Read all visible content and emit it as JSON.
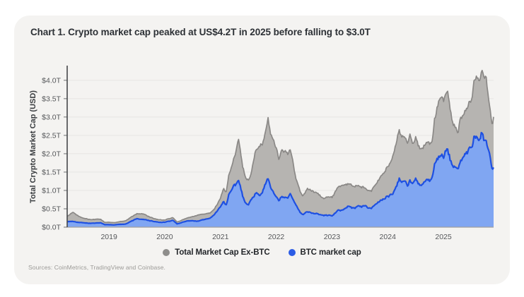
{
  "page": {
    "background": "#ffffff"
  },
  "card": {
    "background": "#f4f3f1",
    "title": "Chart 1. Crypto market cap peaked at US$4.2T in 2025 before falling to $3.0T"
  },
  "chart": {
    "y_axis_title": "Total Crypto Market Cap (USD)",
    "y_tick_labels": [
      "$0.0T",
      "$0.5T",
      "$1.0T",
      "$1.5T",
      "$2.0T",
      "$2.5T",
      "$3.0T",
      "$3.5T",
      "$4.0T"
    ],
    "x_tick_labels": [
      "2019",
      "2020",
      "2021",
      "2022",
      "2023",
      "2024",
      "2025"
    ],
    "colors": {
      "gridline": "#e6e5e3",
      "y_axis_line": "#46484a",
      "x_axis_line": "#a0a09e",
      "tick_mark": "#6f7173",
      "tick_text": "#55575a",
      "axis_title_text": "#3a3d40"
    }
  },
  "chart_data": {
    "type": "area",
    "stacked": true,
    "title": "Chart 1. Crypto market cap peaked at US$4.2T in 2025 before falling to $3.0T",
    "xlabel": "",
    "ylabel": "Total Crypto Market Cap (USD)",
    "value_units": "USD trillions",
    "x_units": "decimal_year",
    "xlim": [
      2018.25,
      2025.9
    ],
    "ylim": [
      0,
      4.4
    ],
    "grid": "horizontal",
    "legend_position": "bottom",
    "x": [
      2018.25,
      2018.35,
      2018.5,
      2018.65,
      2018.85,
      2018.92,
      2019.0,
      2019.1,
      2019.3,
      2019.5,
      2019.6,
      2019.75,
      2019.9,
      2020.0,
      2020.15,
      2020.22,
      2020.4,
      2020.6,
      2020.7,
      2020.8,
      2020.9,
      2021.0,
      2021.05,
      2021.1,
      2021.15,
      2021.25,
      2021.33,
      2021.4,
      2021.45,
      2021.5,
      2021.55,
      2021.6,
      2021.65,
      2021.7,
      2021.8,
      2021.85,
      2021.9,
      2021.95,
      2022.0,
      2022.05,
      2022.1,
      2022.2,
      2022.25,
      2022.3,
      2022.35,
      2022.45,
      2022.5,
      2022.55,
      2022.6,
      2022.7,
      2022.85,
      2022.9,
      2023.0,
      2023.1,
      2023.2,
      2023.3,
      2023.4,
      2023.5,
      2023.6,
      2023.7,
      2023.8,
      2023.9,
      2024.0,
      2024.1,
      2024.2,
      2024.25,
      2024.3,
      2024.35,
      2024.4,
      2024.45,
      2024.5,
      2024.55,
      2024.6,
      2024.65,
      2024.7,
      2024.75,
      2024.8,
      2024.85,
      2024.9,
      2024.95,
      2025.0,
      2025.05,
      2025.1,
      2025.15,
      2025.2,
      2025.25,
      2025.3,
      2025.35,
      2025.4,
      2025.45,
      2025.5,
      2025.55,
      2025.6,
      2025.64,
      2025.68,
      2025.7,
      2025.73,
      2025.76,
      2025.8,
      2025.84,
      2025.87,
      2025.9
    ],
    "series": [
      {
        "name": "BTC market cap",
        "color_fill": "#80a6f2",
        "color_stroke": "#1e50e2",
        "values": [
          0.15,
          0.16,
          0.13,
          0.11,
          0.11,
          0.07,
          0.065,
          0.063,
          0.09,
          0.23,
          0.21,
          0.17,
          0.13,
          0.13,
          0.18,
          0.09,
          0.17,
          0.17,
          0.2,
          0.24,
          0.35,
          0.54,
          0.7,
          0.6,
          0.9,
          1.1,
          1.18,
          0.85,
          0.7,
          0.62,
          0.75,
          0.9,
          0.95,
          0.9,
          1.15,
          1.28,
          1.1,
          0.95,
          0.88,
          0.7,
          0.8,
          0.75,
          0.88,
          0.72,
          0.58,
          0.38,
          0.37,
          0.45,
          0.42,
          0.37,
          0.31,
          0.32,
          0.32,
          0.44,
          0.48,
          0.55,
          0.52,
          0.59,
          0.56,
          0.52,
          0.66,
          0.73,
          0.83,
          0.95,
          1.35,
          1.3,
          1.35,
          1.2,
          1.3,
          1.25,
          1.3,
          1.15,
          1.1,
          1.2,
          1.25,
          1.2,
          1.3,
          1.75,
          1.9,
          2.0,
          1.9,
          2.05,
          1.9,
          1.7,
          1.65,
          1.55,
          1.75,
          1.9,
          2.05,
          2.1,
          2.15,
          2.3,
          2.35,
          2.2,
          2.4,
          2.45,
          2.25,
          2.35,
          2.1,
          1.95,
          1.7,
          1.75
        ]
      },
      {
        "name": "Total Market Cap Ex-BTC",
        "color_fill": "#b6b4b1",
        "color_stroke": "#8a8886",
        "values": [
          0.15,
          0.26,
          0.15,
          0.11,
          0.1,
          0.06,
          0.065,
          0.057,
          0.09,
          0.13,
          0.15,
          0.09,
          0.07,
          0.06,
          0.07,
          0.05,
          0.08,
          0.16,
          0.15,
          0.14,
          0.15,
          0.23,
          0.35,
          0.35,
          0.5,
          0.75,
          1.22,
          0.85,
          0.7,
          0.68,
          0.7,
          1.0,
          1.15,
          1.3,
          1.35,
          1.62,
          1.5,
          1.45,
          1.32,
          1.1,
          1.2,
          1.15,
          1.22,
          1.03,
          0.72,
          0.57,
          0.53,
          0.65,
          0.63,
          0.58,
          0.44,
          0.48,
          0.48,
          0.61,
          0.62,
          0.6,
          0.58,
          0.56,
          0.49,
          0.48,
          0.54,
          0.67,
          0.77,
          1.0,
          1.25,
          1.15,
          1.15,
          1.1,
          1.2,
          1.1,
          1.1,
          1.05,
          1.0,
          1.0,
          1.05,
          1.0,
          1.0,
          1.25,
          1.5,
          1.65,
          1.5,
          1.5,
          1.4,
          1.2,
          1.1,
          0.95,
          1.15,
          1.2,
          1.25,
          1.3,
          1.3,
          1.6,
          1.65,
          1.65,
          1.7,
          1.8,
          1.75,
          1.8,
          1.5,
          1.35,
          1.25,
          1.35
        ]
      }
    ]
  },
  "legend": {
    "items": [
      {
        "label": "Total Market Cap Ex-BTC",
        "color": "#8e8d8b"
      },
      {
        "label": "BTC market cap",
        "color": "#2b5ce5"
      }
    ]
  },
  "footer": {
    "sources": "Sources: CoinMetrics, TradingView and Coinbase."
  }
}
